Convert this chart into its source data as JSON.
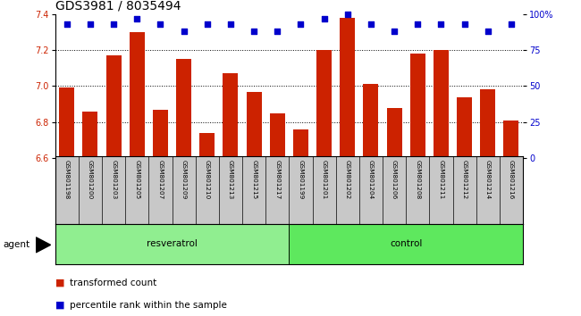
{
  "title": "GDS3981 / 8035494",
  "samples": [
    "GSM801198",
    "GSM801200",
    "GSM801203",
    "GSM801205",
    "GSM801207",
    "GSM801209",
    "GSM801210",
    "GSM801213",
    "GSM801215",
    "GSM801217",
    "GSM801199",
    "GSM801201",
    "GSM801202",
    "GSM801204",
    "GSM801206",
    "GSM801208",
    "GSM801211",
    "GSM801212",
    "GSM801214",
    "GSM801216"
  ],
  "bar_values": [
    6.99,
    6.86,
    7.17,
    7.3,
    6.87,
    7.15,
    6.74,
    7.07,
    6.97,
    6.85,
    6.76,
    7.2,
    7.38,
    7.01,
    6.88,
    7.18,
    7.2,
    6.94,
    6.98,
    6.81
  ],
  "percentile_values": [
    93,
    93,
    93,
    97,
    93,
    88,
    93,
    93,
    88,
    88,
    93,
    97,
    100,
    93,
    88,
    93,
    93,
    93,
    88,
    93
  ],
  "groups": [
    {
      "label": "resveratrol",
      "start": 0,
      "end": 10,
      "color": "#90EE90"
    },
    {
      "label": "control",
      "start": 10,
      "end": 20,
      "color": "#5EE85E"
    }
  ],
  "ylim_left": [
    6.6,
    7.4
  ],
  "ylim_right": [
    0,
    100
  ],
  "yticks_left": [
    6.6,
    6.8,
    7.0,
    7.2,
    7.4
  ],
  "yticks_right": [
    0,
    25,
    50,
    75,
    100
  ],
  "bar_color": "#CC2200",
  "dot_color": "#0000CC",
  "grid_color": "#000000",
  "bg_color": "#C8C8C8",
  "agent_label": "agent",
  "legend_bar": "transformed count",
  "legend_dot": "percentile rank within the sample",
  "title_fontsize": 10,
  "tick_fontsize": 7,
  "label_fontsize": 7.5,
  "sample_fontsize": 5.2
}
